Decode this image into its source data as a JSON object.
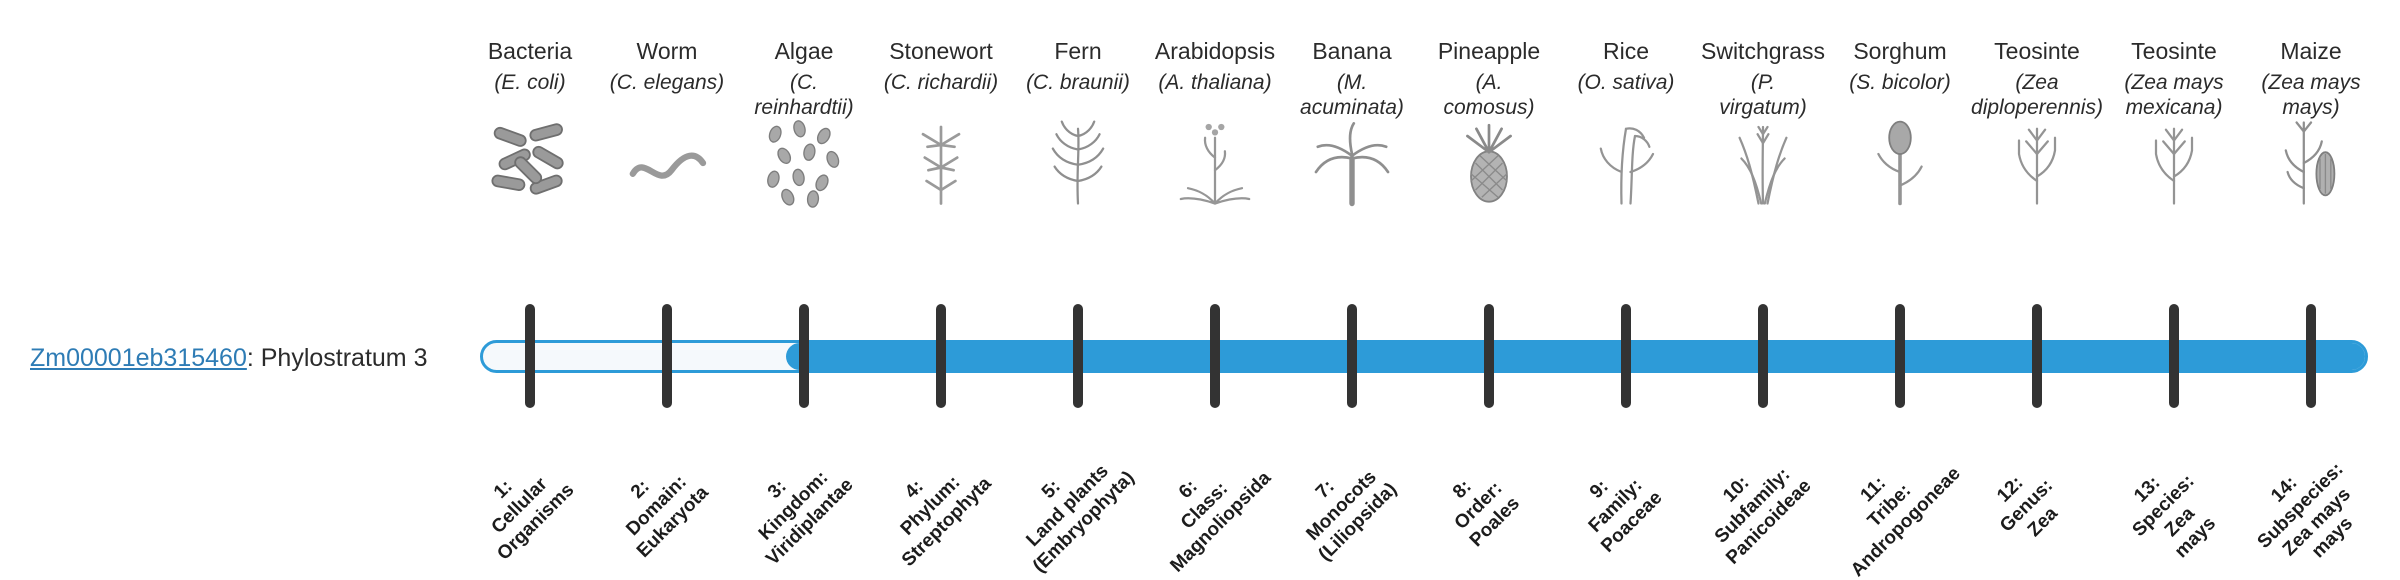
{
  "gene": {
    "id": "Zm00001eb315460",
    "suffix": ": Phylostratum 3",
    "phylostratum": 3
  },
  "timeline": {
    "num_stages": 14,
    "fill_starts_at_stage": 3
  },
  "colors": {
    "bar_blue": "#2d9bd8",
    "bar_unfilled": "#f5f9fc",
    "tick_dark": "#333333",
    "link_blue": "#2e7cb5",
    "text_dark": "#2b2b2b"
  },
  "taxa": [
    {
      "stage": 1,
      "common_name": "Bacteria",
      "scientific_name": "(E. coli)",
      "stage_label": "1:\nCellular\nOrganisms",
      "icon": "bacteria"
    },
    {
      "stage": 2,
      "common_name": "Worm",
      "scientific_name": "(C. elegans)",
      "stage_label": "2:\nDomain:\nEukaryota",
      "icon": "worm"
    },
    {
      "stage": 3,
      "common_name": "Algae",
      "scientific_name": "(C.\nreinhardtii)",
      "stage_label": "3:\nKingdom:\nViridiplantae",
      "icon": "algae"
    },
    {
      "stage": 4,
      "common_name": "Stonewort",
      "scientific_name": "(C. richardii)",
      "stage_label": "4:\nPhylum:\nStreptophyta",
      "icon": "stonewort"
    },
    {
      "stage": 5,
      "common_name": "Fern",
      "scientific_name": "(C. braunii)",
      "stage_label": "5:\nLand plants\n(Embryophyta)",
      "icon": "fern"
    },
    {
      "stage": 6,
      "common_name": "Arabidopsis",
      "scientific_name": "(A. thaliana)",
      "stage_label": "6:\nClass:\nMagnoliopsida",
      "icon": "arabidopsis"
    },
    {
      "stage": 7,
      "common_name": "Banana",
      "scientific_name": "(M.\nacuminata)",
      "stage_label": "7:\nMonocots\n(Liliopsida)",
      "icon": "banana"
    },
    {
      "stage": 8,
      "common_name": "Pineapple",
      "scientific_name": "(A.\ncomosus)",
      "stage_label": "8:\nOrder:\nPoales",
      "icon": "pineapple"
    },
    {
      "stage": 9,
      "common_name": "Rice",
      "scientific_name": "(O. sativa)",
      "stage_label": "9:\nFamily:\nPoaceae",
      "icon": "rice"
    },
    {
      "stage": 10,
      "common_name": "Switchgrass",
      "scientific_name": "(P.\nvirgatum)",
      "stage_label": "10:\nSubfamily:\nPanicoideae",
      "icon": "switchgrass"
    },
    {
      "stage": 11,
      "common_name": "Sorghum",
      "scientific_name": "(S. bicolor)",
      "stage_label": "11:\nTribe:\nAndropogoneae",
      "icon": "sorghum"
    },
    {
      "stage": 12,
      "common_name": "Teosinte",
      "scientific_name": "(Zea\ndiploperennis)",
      "stage_label": "12:\nGenus:\nZea",
      "icon": "teosinte"
    },
    {
      "stage": 13,
      "common_name": "Teosinte",
      "scientific_name": "(Zea mays\nmexicana)",
      "stage_label": "13:\nSpecies:\nZea\nmays",
      "icon": "teosinte"
    },
    {
      "stage": 14,
      "common_name": "Maize",
      "scientific_name": "(Zea mays\nmays)",
      "stage_label": "14:\nSubspecies:\nZea mays\nmays",
      "icon": "maize"
    }
  ]
}
